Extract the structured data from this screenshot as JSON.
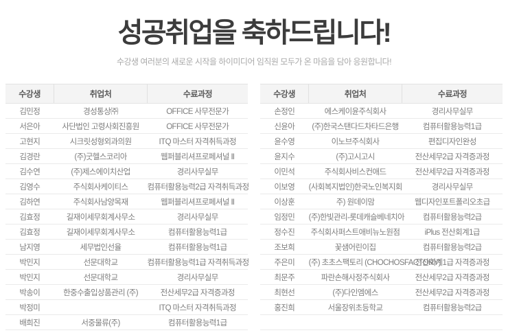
{
  "page": {
    "title": "성공취업을 축하드립니다!",
    "subtitle": "수강생 여러분의 새로운 시작을 하이미디어 임직원 모두가 온 마음을 담아 응원합니다!"
  },
  "colors": {
    "title_text": "#3c3c3c",
    "subtitle_text": "#a9a9a9",
    "header_bg": "#f4f4f4",
    "header_text": "#5a5a5a",
    "body_text": "#7d7d7d",
    "row_border": "#eaeaea"
  },
  "left_table": {
    "headers": {
      "student": "수강생",
      "employer": "취업처",
      "course": "수료과정"
    },
    "rows": [
      [
        "김민정",
        "경성통상㈜",
        "OFFICE 사무전문가"
      ],
      [
        "서은아",
        "사단법인 고령사회진흥원",
        "OFFICE 사무전문가"
      ],
      [
        "고현지",
        "시크릿성형외과의원",
        "ITQ 마스터 자격취득과정"
      ],
      [
        "김경란",
        "(주)굿헬스코리아",
        "웹퍼블리셔프로페셔널 Ⅱ"
      ],
      [
        "김수연",
        "(주)제스에이치산업",
        "경리사무실무"
      ],
      [
        "김영수",
        "주식회사케이티스",
        "컴퓨터활용능력2급 자격취득과정"
      ],
      [
        "김하연",
        "주식회사남양목재",
        "웹퍼블리셔프로페셔널 Ⅱ"
      ],
      [
        "김효정",
        "길재이세무회계사무소",
        "경리사무실무"
      ],
      [
        "김효정",
        "길재이세무회계사무소",
        "컴퓨터활용능력1급"
      ],
      [
        "남지영",
        "세무법인선율",
        "컴퓨터활용능력1급"
      ],
      [
        "박민지",
        "선문대학교",
        "컴퓨터활용능력1급 자격취득과정"
      ],
      [
        "박민지",
        "선문대학교",
        "경리사무실무"
      ],
      [
        "박송이",
        "한중수출입상품관리 (주)",
        "전산세무2급 자격증과정"
      ],
      [
        "박정미",
        "",
        "ITQ 마스터 자격취득과정"
      ],
      [
        "배희진",
        "서중물류(주)",
        "컴퓨터활용능력1급"
      ]
    ]
  },
  "right_table": {
    "headers": {
      "student": "수강생",
      "employer": "취업처",
      "course": "수료과정"
    },
    "rows": [
      [
        "손정인",
        "에스케이윤주식회사",
        "경리사무실무"
      ],
      [
        "신윤아",
        "(주)한국스탠다드차타드은행",
        "컴퓨터활용능력1급"
      ],
      [
        "윤수영",
        "이노브주식회사",
        "편집디자인완성"
      ],
      [
        "윤지수",
        "(주)고시고시",
        "전산세무2급 자격증과정"
      ],
      [
        "이민석",
        "주식회사비스컨애드",
        "전산세무2급 자격증과정"
      ],
      [
        "이보영",
        "(사회복지법인)한국노인복지회",
        "경리사무실무"
      ],
      [
        "이상훈",
        "주) 원데이맘",
        "웹디자인포트폴리오초급"
      ],
      [
        "임정민",
        "(주)한빛관리-롯데캐슬베네치아",
        "컴퓨터활용능력2급"
      ],
      [
        "정수진",
        "주식회사퍼스트애비뉴노원점",
        "iPlus 전산회계1급"
      ],
      [
        "조보희",
        "꽃샘어린이집",
        "컴퓨터활용능력2급"
      ],
      [
        "주은미",
        "(주) 초초스팩토리 (CHOCHOSFACTORY)",
        "전산회계1급 자격증과정"
      ],
      [
        "최문주",
        "파란손해사정주식회사",
        "전산세무2급 자격증과정"
      ],
      [
        "최현선",
        "(주)다인엠에스",
        "전산세무2급 자격증과정"
      ],
      [
        "홍진희",
        "서울장위초등학교",
        "컴퓨터활용능력2급"
      ],
      [
        "",
        "",
        ""
      ]
    ]
  }
}
